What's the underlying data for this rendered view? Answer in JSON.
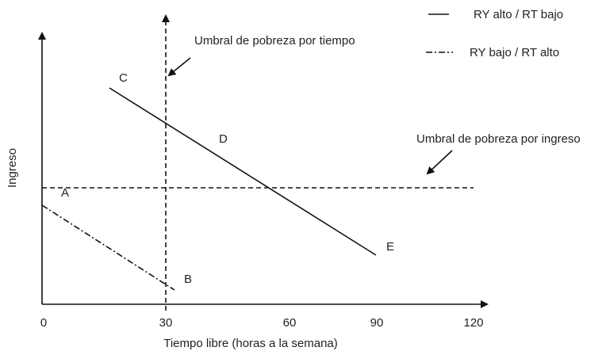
{
  "axes": {
    "x_label": "Tiempo libre (horas a la semana)",
    "y_label": "Ingreso",
    "x_ticks": [
      0,
      30,
      60,
      90,
      120
    ]
  },
  "points": {
    "A": "A",
    "B": "B",
    "C": "C",
    "D": "D",
    "E": "E"
  },
  "annotations": {
    "time_threshold": "Umbral de pobreza por tiempo",
    "income_threshold": "Umbral de pobreza por ingreso"
  },
  "legend": [
    "RY alto / RT bajo",
    "RY bajo / RT alto"
  ]
}
